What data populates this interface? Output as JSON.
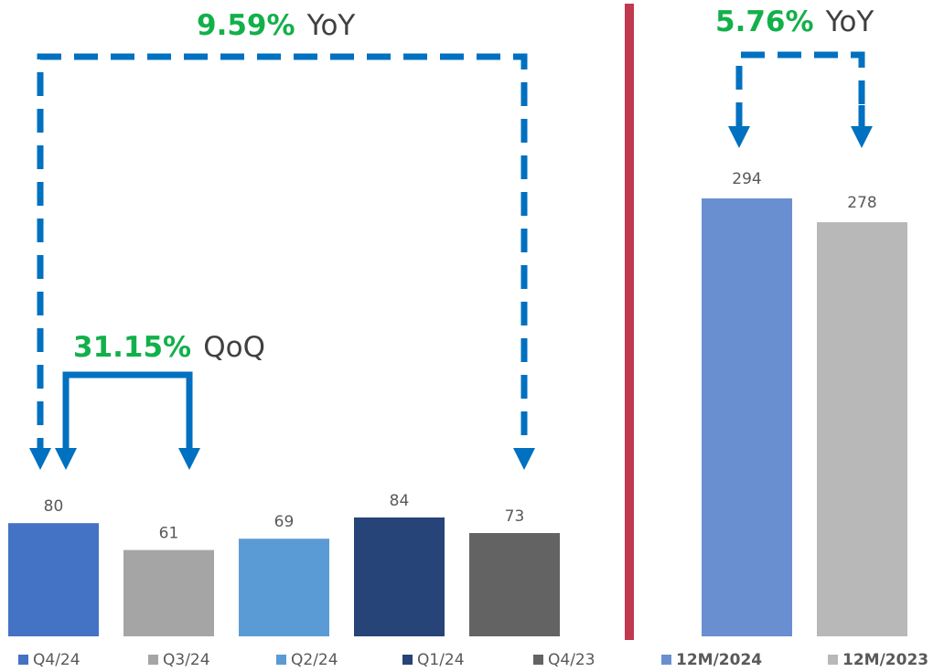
{
  "chart_data": [
    {
      "type": "bar",
      "categories": [
        "Q4/24",
        "Q3/24",
        "Q2/24",
        "Q1/24",
        "Q4/23"
      ],
      "values": [
        80,
        61,
        69,
        84,
        73
      ],
      "colors": [
        "#4472c4",
        "#a5a5a5",
        "#5b9bd5",
        "#264478",
        "#636363"
      ],
      "legend_position": "bottom",
      "grid": false
    },
    {
      "type": "bar",
      "categories": [
        "12M/2024",
        "12M/2023"
      ],
      "values": [
        294,
        278
      ],
      "colors": [
        "#6a8fd1",
        "#b8b8b8"
      ],
      "legend_position": "bottom",
      "grid": false
    }
  ],
  "annotations": {
    "yoy_quarter": {
      "pct": "9.59%",
      "unit": "YoY"
    },
    "qoq_quarter": {
      "pct": "31.15%",
      "unit": "QoQ"
    },
    "yoy_annual": {
      "pct": "5.76%",
      "unit": "YoY"
    }
  },
  "colors": {
    "arrow": "#0070c0",
    "divider": "#c0394f",
    "percent": "#12b04a"
  }
}
